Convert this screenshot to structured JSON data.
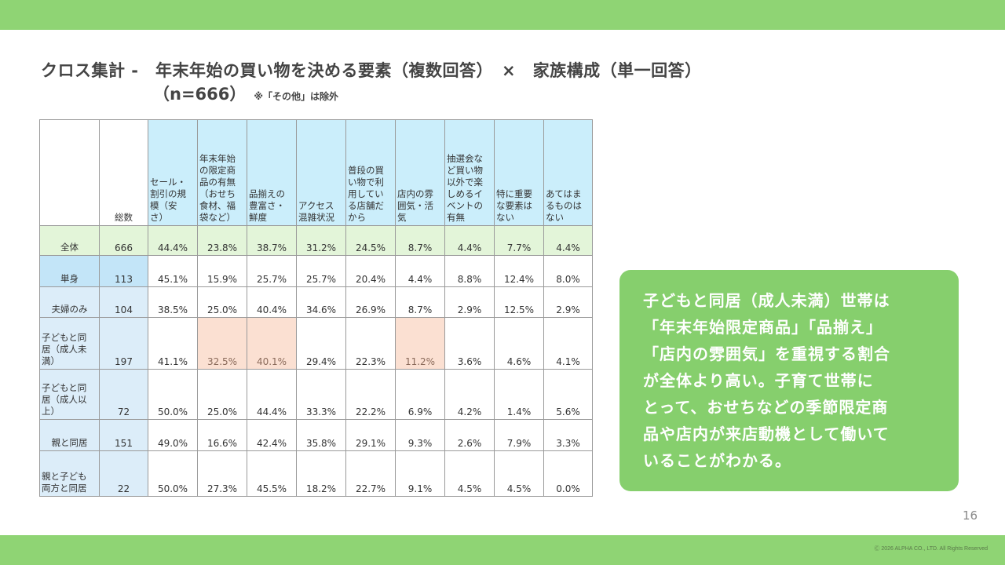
{
  "slide": {
    "title": "クロス集計 -　年末年始の買い物を決める要素（複数回答）　×　家族構成（単一回答）",
    "subtitle": "（n=666）",
    "subtitle_note": "※「その他」は除外",
    "page_number": "16",
    "copyright": "Ⓒ 2026 ALPHA CO., LTD. All Rights Reserved",
    "colors": {
      "bar": "#8fd474",
      "callout": "#86cf6d",
      "header": "#cbeefb",
      "highlight": "#fbe0d2",
      "all_row": "#e3f5d9"
    }
  },
  "table": {
    "total_header": "総数",
    "columns": [
      [
        "セール・",
        "割引の規",
        "模（安",
        "さ）"
      ],
      [
        "年末年始",
        "の限定商",
        "品の有無",
        "（おせち",
        "食材、福",
        "袋など）"
      ],
      [
        "品揃えの",
        "豊富さ・",
        "鮮度"
      ],
      [
        "アクセス",
        "混雑状況"
      ],
      [
        "普段の買",
        "い物で利",
        "用してい",
        "る店舗だ",
        "から"
      ],
      [
        "店内の雰",
        "囲気・活",
        "気"
      ],
      [
        "抽選会な",
        "ど買い物",
        "以外で楽",
        "しめるイ",
        "ベントの",
        "有無"
      ],
      [
        "特に重要",
        "な要素は",
        "ない"
      ],
      [
        "あてはま",
        "るものは",
        "ない"
      ]
    ],
    "rows": [
      {
        "label": [
          "全体"
        ],
        "total": "666",
        "values": [
          "44.4%",
          "23.8%",
          "38.7%",
          "31.2%",
          "24.5%",
          "8.7%",
          "4.4%",
          "7.7%",
          "4.4%"
        ]
      },
      {
        "label": [
          "単身"
        ],
        "total": "113",
        "values": [
          "45.1%",
          "15.9%",
          "25.7%",
          "25.7%",
          "20.4%",
          "4.4%",
          "8.8%",
          "12.4%",
          "8.0%"
        ]
      },
      {
        "label": [
          "夫婦のみ"
        ],
        "total": "104",
        "values": [
          "38.5%",
          "25.0%",
          "40.4%",
          "34.6%",
          "26.9%",
          "8.7%",
          "2.9%",
          "12.5%",
          "2.9%"
        ]
      },
      {
        "label": [
          "子どもと同",
          "居（成人未",
          "満）"
        ],
        "total": "197",
        "values": [
          "41.1%",
          "32.5%",
          "40.1%",
          "29.4%",
          "22.3%",
          "11.2%",
          "3.6%",
          "4.6%",
          "4.1%"
        ]
      },
      {
        "label": [
          "子どもと同",
          "居（成人以",
          "上）"
        ],
        "total": "72",
        "values": [
          "50.0%",
          "25.0%",
          "44.4%",
          "33.3%",
          "22.2%",
          "6.9%",
          "4.2%",
          "1.4%",
          "5.6%"
        ]
      },
      {
        "label": [
          "親と同居"
        ],
        "total": "151",
        "values": [
          "49.0%",
          "16.6%",
          "42.4%",
          "35.8%",
          "29.1%",
          "9.3%",
          "2.6%",
          "7.9%",
          "3.3%"
        ]
      },
      {
        "label": [
          "親と子ども",
          "両方と同居"
        ],
        "total": "22",
        "values": [
          "50.0%",
          "27.3%",
          "45.5%",
          "18.2%",
          "22.7%",
          "9.1%",
          "4.5%",
          "4.5%",
          "0.0%"
        ]
      }
    ]
  },
  "callout": {
    "lines": [
      "子どもと同居（成人未満）世帯は",
      "「年末年始限定商品」「品揃え」",
      "「店内の雰囲気」を重視する割合",
      "が全体より高い。子育て世帯に",
      "とって、おせちなどの季節限定商",
      "品や店内が来店動機として働いて",
      "いることがわかる。"
    ]
  }
}
